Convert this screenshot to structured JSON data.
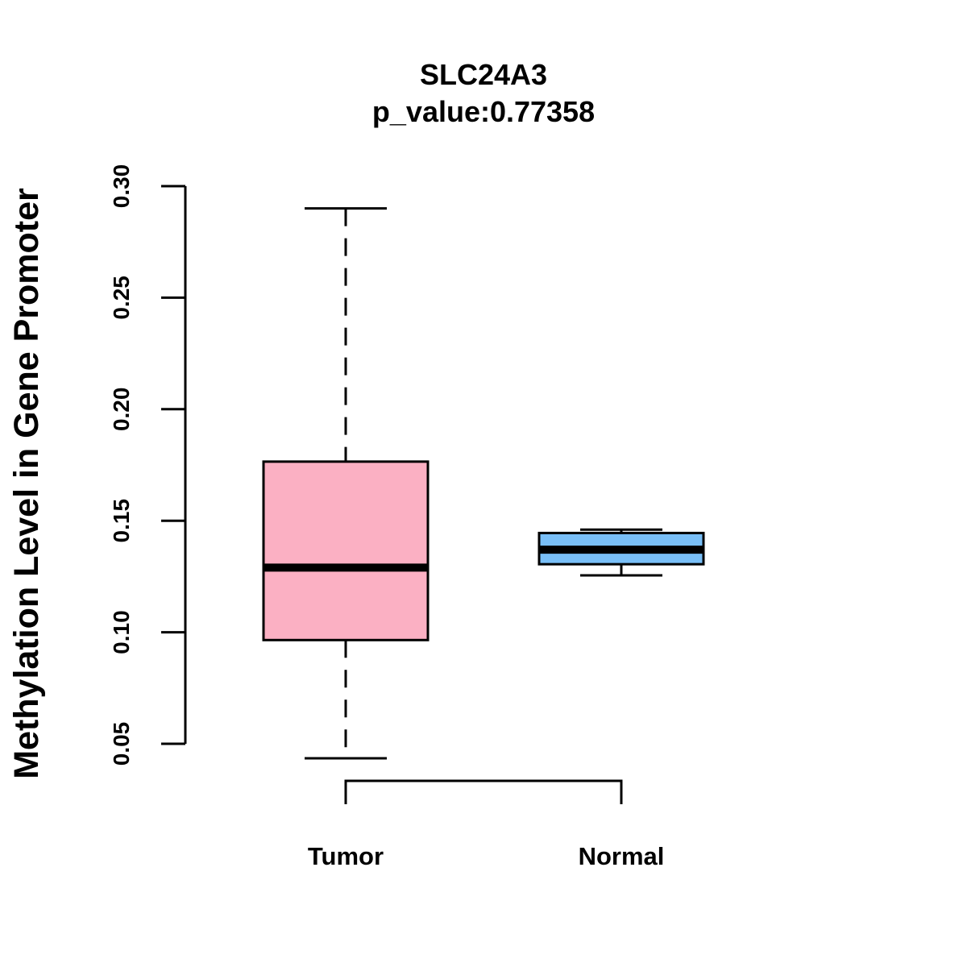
{
  "chart_data": {
    "type": "boxplot",
    "title": "SLC24A3",
    "subtitle": "p_value:0.77358",
    "xlabel": "",
    "ylabel": "Methylation Level in Gene Promoter",
    "ylim": [
      0.05,
      0.3
    ],
    "yticks": [
      0.05,
      0.1,
      0.15,
      0.2,
      0.25,
      0.3
    ],
    "ytick_labels": [
      "0.05",
      "0.10",
      "0.15",
      "0.20",
      "0.25",
      "0.30"
    ],
    "grid": false,
    "categories": [
      "Tumor",
      "Normal"
    ],
    "series": [
      {
        "name": "Tumor",
        "color": "#FBB0C3",
        "whisker_low": 0.0435,
        "q1": 0.0965,
        "median": 0.129,
        "q3": 0.1765,
        "whisker_high": 0.29
      },
      {
        "name": "Normal",
        "color": "#79BFF7",
        "whisker_low": 0.1255,
        "q1": 0.1305,
        "median": 0.137,
        "q3": 0.1445,
        "whisker_high": 0.146
      }
    ],
    "bracket": {
      "left": "Tumor",
      "right": "Normal"
    }
  }
}
